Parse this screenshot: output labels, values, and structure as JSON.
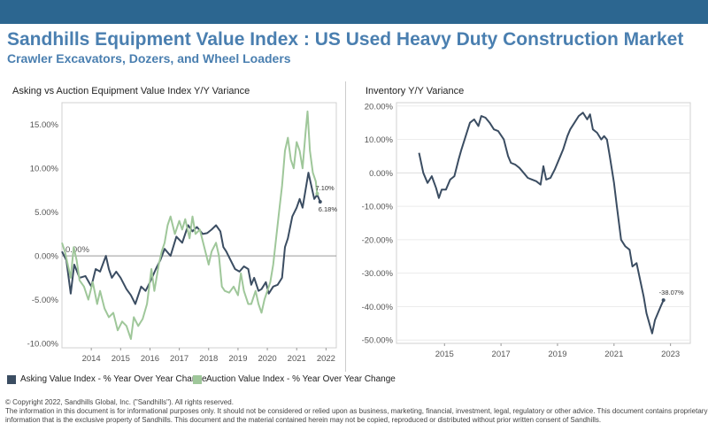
{
  "header": {
    "title": "Sandhills Equipment Value Index : US Used Heavy Duty Construction Market",
    "subtitle": "Crawler Excavators, Dozers, and Wheel Loaders"
  },
  "colors": {
    "topbar": "#2c6690",
    "title": "#4a7fb0",
    "asking": "#3b4d62",
    "auction": "#9fc79a"
  },
  "legend": {
    "asking": "Asking Value Index - % Year Over Year Change",
    "auction": "Auction Value Index - % Year Over Year Change"
  },
  "footer": {
    "line1": "© Copyright 2022, Sandhills Global, Inc. (\"Sandhills\"). All rights reserved.",
    "line2": "The information in this document is for informational purposes only.  It should not be considered or relied upon as business, marketing, financial, investment, legal, regulatory or other advice. This document contains proprietary",
    "line3": "information that is the exclusive property of Sandhills. This document and the material contained herein may not be copied, reproduced or distributed without prior written consent of Sandhills."
  },
  "chart_data": [
    {
      "type": "line",
      "title": "Asking vs Auction Equipment Value Index Y/Y Variance",
      "x_ticks": [
        "2014",
        "2015",
        "2016",
        "2017",
        "2018",
        "2019",
        "2020",
        "2021",
        "2022"
      ],
      "y_ticks": [
        "-10.00%",
        "-5.00%",
        "0.00%",
        "5.00%",
        "10.00%",
        "15.00%"
      ],
      "xlim": [
        2013.5,
        2022.85
      ],
      "ylim": [
        -10.5,
        17.5
      ],
      "zero_label": "0.00%",
      "series": [
        {
          "name": "Asking Value Index - % Year Over Year Change",
          "end_label": "6.18%",
          "points": [
            [
              2013.5,
              0.5
            ],
            [
              2013.65,
              -0.5
            ],
            [
              2013.8,
              -4.3
            ],
            [
              2013.92,
              -1.0
            ],
            [
              2014.1,
              -2.5
            ],
            [
              2014.3,
              -2.3
            ],
            [
              2014.5,
              -3.5
            ],
            [
              2014.65,
              -1.5
            ],
            [
              2014.8,
              -1.8
            ],
            [
              2015.0,
              0.0
            ],
            [
              2015.1,
              -1.5
            ],
            [
              2015.2,
              -2.5
            ],
            [
              2015.35,
              -1.8
            ],
            [
              2015.5,
              -2.5
            ],
            [
              2015.7,
              -3.8
            ],
            [
              2015.85,
              -4.5
            ],
            [
              2016.0,
              -5.5
            ],
            [
              2016.2,
              -3.5
            ],
            [
              2016.35,
              -4.0
            ],
            [
              2016.5,
              -3.0
            ],
            [
              2016.7,
              -1.5
            ],
            [
              2016.85,
              -0.5
            ],
            [
              2017.0,
              0.8
            ],
            [
              2017.2,
              0.0
            ],
            [
              2017.4,
              2.2
            ],
            [
              2017.6,
              1.5
            ],
            [
              2017.8,
              3.5
            ],
            [
              2017.95,
              2.8
            ],
            [
              2018.1,
              3.3
            ],
            [
              2018.3,
              2.5
            ],
            [
              2018.45,
              2.6
            ],
            [
              2018.6,
              3.0
            ],
            [
              2018.75,
              3.5
            ],
            [
              2018.9,
              2.8
            ],
            [
              2019.0,
              1.0
            ],
            [
              2019.1,
              0.5
            ],
            [
              2019.25,
              -0.5
            ],
            [
              2019.4,
              -1.5
            ],
            [
              2019.55,
              -1.8
            ],
            [
              2019.7,
              -1.2
            ],
            [
              2019.85,
              -1.5
            ],
            [
              2019.95,
              -3.3
            ],
            [
              2020.05,
              -2.5
            ],
            [
              2020.2,
              -4.0
            ],
            [
              2020.3,
              -3.8
            ],
            [
              2020.45,
              -3.0
            ],
            [
              2020.55,
              -4.3
            ],
            [
              2020.7,
              -3.5
            ],
            [
              2020.85,
              -3.3
            ],
            [
              2021.0,
              -2.5
            ],
            [
              2021.1,
              1.0
            ],
            [
              2021.2,
              2.0
            ],
            [
              2021.35,
              4.5
            ],
            [
              2021.5,
              5.5
            ],
            [
              2021.6,
              6.5
            ],
            [
              2021.7,
              5.5
            ],
            [
              2021.8,
              7.5
            ],
            [
              2021.9,
              9.5
            ],
            [
              2022.0,
              8.0
            ],
            [
              2022.1,
              6.5
            ],
            [
              2022.2,
              7.0
            ],
            [
              2022.3,
              6.18
            ]
          ]
        },
        {
          "name": "Auction Value Index - % Year Over Year Change",
          "end_label": "7.10%",
          "points": [
            [
              2013.5,
              1.5
            ],
            [
              2013.6,
              0.5
            ],
            [
              2013.7,
              -1.0
            ],
            [
              2013.8,
              -2.5
            ],
            [
              2013.9,
              1.0
            ],
            [
              2014.0,
              -0.5
            ],
            [
              2014.1,
              -2.8
            ],
            [
              2014.25,
              -3.5
            ],
            [
              2014.4,
              -5.0
            ],
            [
              2014.55,
              -3.0
            ],
            [
              2014.7,
              -5.5
            ],
            [
              2014.8,
              -4.0
            ],
            [
              2014.95,
              -6.0
            ],
            [
              2015.1,
              -7.0
            ],
            [
              2015.25,
              -6.5
            ],
            [
              2015.4,
              -8.5
            ],
            [
              2015.55,
              -7.5
            ],
            [
              2015.7,
              -8.0
            ],
            [
              2015.85,
              -9.5
            ],
            [
              2015.95,
              -7.0
            ],
            [
              2016.1,
              -8.0
            ],
            [
              2016.25,
              -7.2
            ],
            [
              2016.4,
              -5.5
            ],
            [
              2016.55,
              -1.5
            ],
            [
              2016.65,
              -4.0
            ],
            [
              2016.8,
              -1.0
            ],
            [
              2016.9,
              0.5
            ],
            [
              2017.0,
              1.5
            ],
            [
              2017.1,
              3.5
            ],
            [
              2017.2,
              4.5
            ],
            [
              2017.35,
              2.5
            ],
            [
              2017.5,
              4.0
            ],
            [
              2017.6,
              3.0
            ],
            [
              2017.7,
              4.2
            ],
            [
              2017.85,
              2.0
            ],
            [
              2017.95,
              4.5
            ],
            [
              2018.05,
              2.5
            ],
            [
              2018.2,
              3.0
            ],
            [
              2018.35,
              1.0
            ],
            [
              2018.5,
              -1.0
            ],
            [
              2018.6,
              0.5
            ],
            [
              2018.75,
              1.5
            ],
            [
              2018.85,
              0.0
            ],
            [
              2018.95,
              -3.5
            ],
            [
              2019.05,
              -4.0
            ],
            [
              2019.2,
              -4.2
            ],
            [
              2019.35,
              -3.5
            ],
            [
              2019.5,
              -4.5
            ],
            [
              2019.6,
              -2.0
            ],
            [
              2019.7,
              -4.0
            ],
            [
              2019.85,
              -5.5
            ],
            [
              2019.95,
              -5.5
            ],
            [
              2020.1,
              -4.0
            ],
            [
              2020.2,
              -5.5
            ],
            [
              2020.3,
              -6.5
            ],
            [
              2020.4,
              -5.0
            ],
            [
              2020.5,
              -4.0
            ],
            [
              2020.6,
              -3.0
            ],
            [
              2020.7,
              -1.0
            ],
            [
              2020.8,
              2.0
            ],
            [
              2020.9,
              5.0
            ],
            [
              2021.0,
              8.0
            ],
            [
              2021.1,
              12.0
            ],
            [
              2021.2,
              13.5
            ],
            [
              2021.3,
              11.0
            ],
            [
              2021.4,
              10.0
            ],
            [
              2021.5,
              13.0
            ],
            [
              2021.6,
              12.0
            ],
            [
              2021.7,
              10.0
            ],
            [
              2021.8,
              14.0
            ],
            [
              2021.87,
              16.5
            ],
            [
              2021.95,
              12.0
            ],
            [
              2022.05,
              9.5
            ],
            [
              2022.15,
              8.5
            ],
            [
              2022.2,
              7.1
            ]
          ]
        }
      ]
    },
    {
      "type": "line",
      "title": "Inventory Y/Y Variance",
      "x_ticks": [
        "2015",
        "2017",
        "2019",
        "2021",
        "2023"
      ],
      "y_ticks": [
        "-50.00%",
        "-40.00%",
        "-30.00%",
        "-20.00%",
        "-10.00%",
        "0.00%",
        "10.00%",
        "20.00%"
      ],
      "xlim": [
        2013.3,
        2023.7
      ],
      "ylim": [
        -51,
        21
      ],
      "series": [
        {
          "name": "Inventory Y/Y Variance",
          "end_label": "-38.07%",
          "points": [
            [
              2014.1,
              6.0
            ],
            [
              2014.25,
              0.0
            ],
            [
              2014.4,
              -3.0
            ],
            [
              2014.55,
              -1.0
            ],
            [
              2014.7,
              -4.5
            ],
            [
              2014.8,
              -7.5
            ],
            [
              2014.9,
              -5.0
            ],
            [
              2015.05,
              -5.0
            ],
            [
              2015.2,
              -2.0
            ],
            [
              2015.35,
              -1.0
            ],
            [
              2015.5,
              4.0
            ],
            [
              2015.6,
              7.0
            ],
            [
              2015.75,
              11.0
            ],
            [
              2015.9,
              15.0
            ],
            [
              2016.05,
              16.0
            ],
            [
              2016.2,
              14.0
            ],
            [
              2016.3,
              17.0
            ],
            [
              2016.45,
              16.5
            ],
            [
              2016.6,
              15.0
            ],
            [
              2016.75,
              13.0
            ],
            [
              2016.9,
              12.5
            ],
            [
              2017.1,
              10.0
            ],
            [
              2017.25,
              5.0
            ],
            [
              2017.35,
              3.0
            ],
            [
              2017.5,
              2.5
            ],
            [
              2017.65,
              1.5
            ],
            [
              2017.8,
              0.0
            ],
            [
              2017.95,
              -1.5
            ],
            [
              2018.1,
              -2.0
            ],
            [
              2018.25,
              -2.5
            ],
            [
              2018.4,
              -3.5
            ],
            [
              2018.5,
              2.0
            ],
            [
              2018.6,
              -2.0
            ],
            [
              2018.75,
              -1.5
            ],
            [
              2018.9,
              1.0
            ],
            [
              2019.05,
              4.0
            ],
            [
              2019.2,
              7.0
            ],
            [
              2019.35,
              11.0
            ],
            [
              2019.45,
              13.0
            ],
            [
              2019.6,
              15.0
            ],
            [
              2019.75,
              17.0
            ],
            [
              2019.9,
              18.0
            ],
            [
              2020.05,
              16.0
            ],
            [
              2020.15,
              17.5
            ],
            [
              2020.25,
              13.0
            ],
            [
              2020.4,
              12.0
            ],
            [
              2020.55,
              10.0
            ],
            [
              2020.65,
              11.0
            ],
            [
              2020.75,
              10.0
            ],
            [
              2020.85,
              5.0
            ],
            [
              2021.0,
              -3.0
            ],
            [
              2021.1,
              -10.0
            ],
            [
              2021.25,
              -20.0
            ],
            [
              2021.4,
              -22.0
            ],
            [
              2021.55,
              -23.0
            ],
            [
              2021.65,
              -28.0
            ],
            [
              2021.8,
              -27.0
            ],
            [
              2021.95,
              -33.0
            ],
            [
              2022.05,
              -37.0
            ],
            [
              2022.15,
              -42.0
            ],
            [
              2022.25,
              -45.0
            ],
            [
              2022.35,
              -48.0
            ],
            [
              2022.45,
              -44.0
            ],
            [
              2022.55,
              -42.0
            ],
            [
              2022.65,
              -40.0
            ],
            [
              2022.75,
              -38.07
            ]
          ]
        }
      ]
    }
  ]
}
